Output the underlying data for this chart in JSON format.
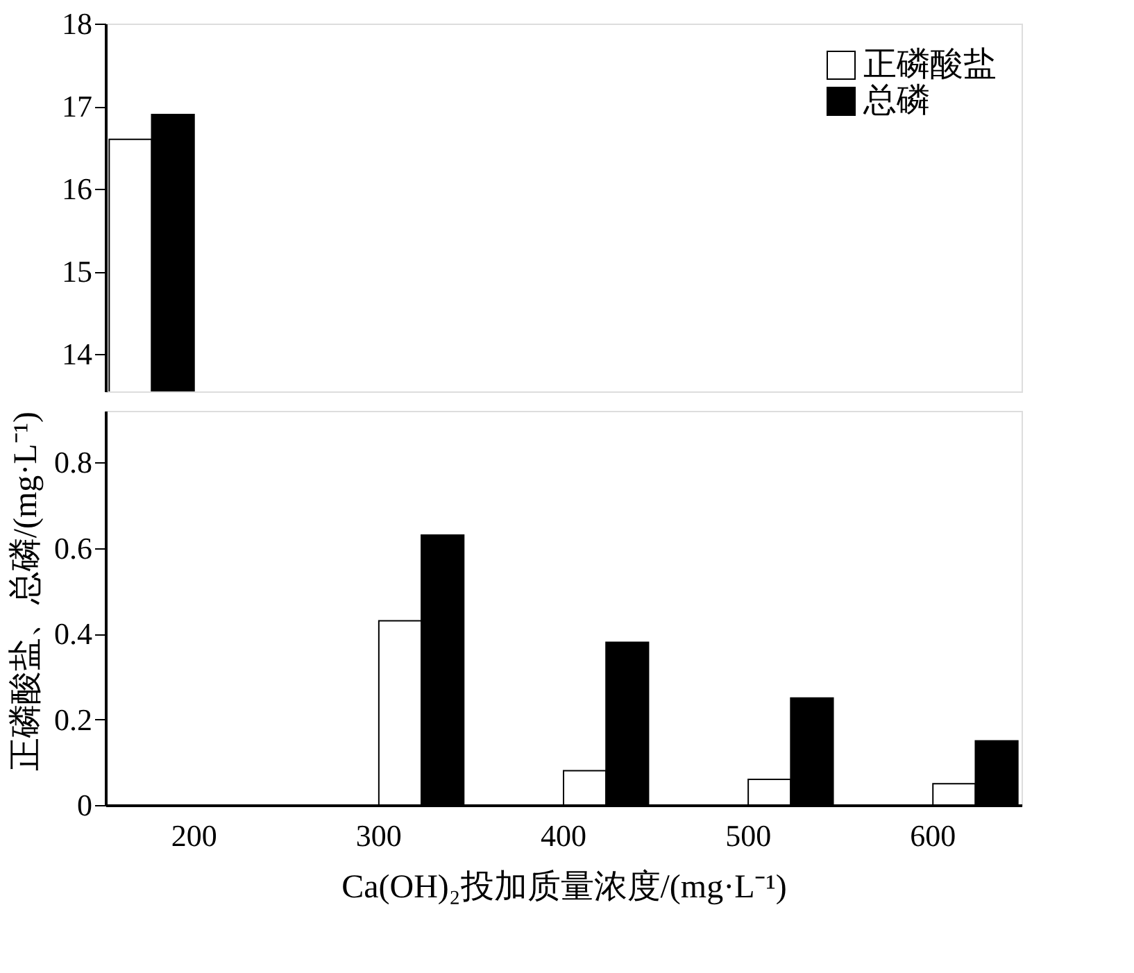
{
  "chart_data": [
    {
      "type": "bar",
      "categories": [
        "200",
        "300",
        "400",
        "500",
        "600"
      ],
      "ylim": [
        13.55,
        18
      ],
      "yticks": [
        14,
        15,
        16,
        17,
        18
      ],
      "tick_labels": "y",
      "legend": "top right",
      "grid": false,
      "series": [
        {
          "name": "正磷酸盐",
          "color": "#ffffff",
          "values": [
            16.6,
            null,
            null,
            null,
            null
          ]
        },
        {
          "name": "总磷",
          "color": "#000000",
          "values": [
            16.9,
            null,
            null,
            null,
            null
          ]
        }
      ]
    },
    {
      "type": "bar",
      "categories": [
        "200",
        "300",
        "400",
        "500",
        "600"
      ],
      "ylim": [
        0,
        0.92
      ],
      "yticks": [
        {
          "value": 0,
          "label": "0"
        },
        0.2,
        0.4,
        0.6,
        0.8
      ],
      "xlabel": "Ca(OH)₂投加质量浓度/(mg·L⁻¹)",
      "ylabel": "正磷酸盐、总磷/(mg·L⁻¹)",
      "grid": false,
      "series": [
        {
          "color": "#ffffff",
          "values": [
            null,
            0.43,
            0.08,
            0.06,
            0.05
          ]
        },
        {
          "color": "#000000",
          "values": [
            null,
            0.63,
            0.38,
            0.25,
            0.15
          ]
        }
      ]
    }
  ]
}
